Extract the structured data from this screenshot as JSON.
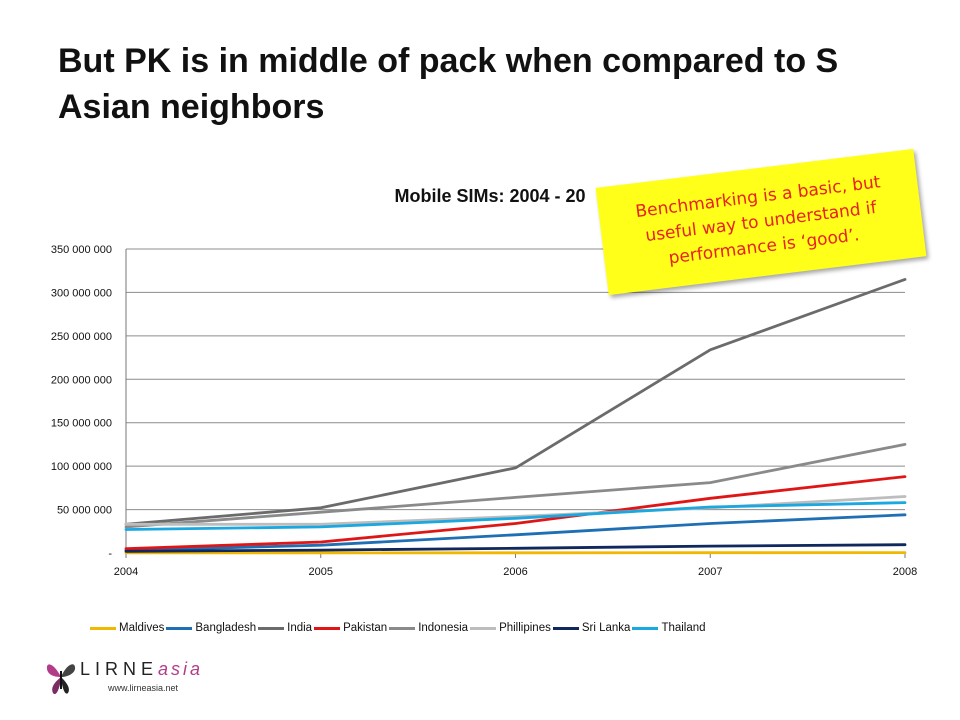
{
  "slide": {
    "title": "But PK is in middle of pack when compared to S Asian neighbors"
  },
  "callout": {
    "text": "Benchmarking is a basic, but useful way to understand if performance is ‘good’."
  },
  "logo": {
    "wordmark_main": "LIRNE",
    "wordmark_accent": "asia",
    "url": "www.lirneasia.net"
  },
  "colors": {
    "callout_bg": "#ffff1a",
    "callout_text": "#e8211c",
    "logo_accent": "#b33c8a"
  },
  "chart_data": {
    "type": "line",
    "title": "Mobile SIMs: 2004 - 20",
    "xlabel": "",
    "ylabel": "",
    "x": [
      "2004",
      "2005",
      "2006",
      "2007",
      "2008"
    ],
    "ylim": [
      0,
      350000000
    ],
    "yticks": [
      0,
      50000000,
      100000000,
      150000000,
      200000000,
      250000000,
      300000000,
      350000000
    ],
    "ytick_labels": [
      "-",
      "50 000 000",
      "100 000 000",
      "150 000 000",
      "200 000 000",
      "250 000 000",
      "300 000 000",
      "350 000 000"
    ],
    "grid": true,
    "legend_position": "bottom",
    "series": [
      {
        "name": "Maldives",
        "color": "#f2b700",
        "values": [
          100000,
          150000,
          250000,
          350000,
          450000
        ]
      },
      {
        "name": "Bangladesh",
        "color": "#1f6fb5",
        "values": [
          3000000,
          9000000,
          21000000,
          34000000,
          44000000
        ]
      },
      {
        "name": "India",
        "color": "#6b6b6b",
        "values": [
          33000000,
          52000000,
          98000000,
          234000000,
          315000000
        ]
      },
      {
        "name": "Pakistan",
        "color": "#e01616",
        "values": [
          5000000,
          12700000,
          34000000,
          63000000,
          88000000
        ]
      },
      {
        "name": "Indonesia",
        "color": "#8a8a8a",
        "values": [
          30000000,
          47000000,
          64000000,
          81000000,
          125000000
        ]
      },
      {
        "name": "Phillipines",
        "color": "#bdbdbd",
        "values": [
          33000000,
          33000000,
          42000000,
          52000000,
          65000000
        ]
      },
      {
        "name": "Sri Lanka",
        "color": "#10285e",
        "values": [
          2000000,
          3300000,
          5400000,
          7900000,
          9500000
        ]
      },
      {
        "name": "Thailand",
        "color": "#1ba8e0",
        "values": [
          27000000,
          30000000,
          40000000,
          53000000,
          58000000
        ]
      }
    ]
  }
}
